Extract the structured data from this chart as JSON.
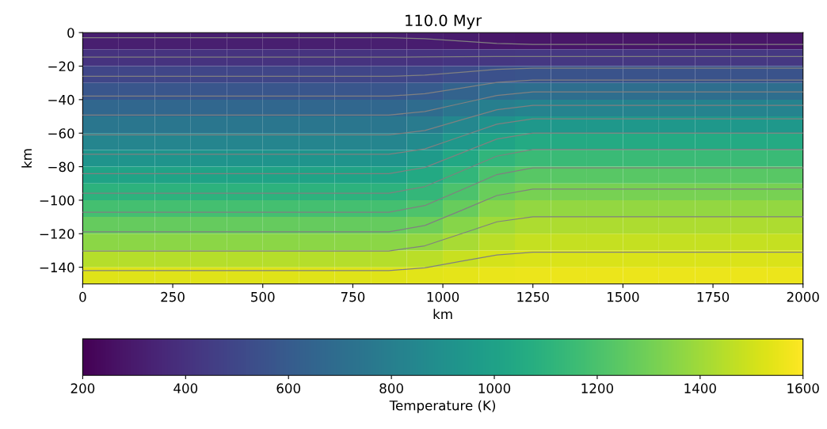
{
  "chart_data": {
    "type": "heatmap",
    "title": "110.0 Myr",
    "xlabel": "km",
    "ylabel": "km",
    "clabel": "Temperature (K)",
    "x": [
      50,
      150,
      250,
      350,
      450,
      550,
      650,
      750,
      850,
      950,
      1050,
      1150,
      1250,
      1350,
      1450,
      1550,
      1650,
      1750,
      1850,
      1950
    ],
    "y": [
      -5,
      -15,
      -25,
      -35,
      -45,
      -55,
      -65,
      -75,
      -85,
      -95,
      -105,
      -115,
      -125,
      -135,
      -145
    ],
    "cells": [
      [
        317,
        317,
        317,
        317,
        317,
        317,
        317,
        317,
        317,
        311,
        299,
        286,
        280,
        280,
        280,
        280,
        280,
        280,
        280,
        280
      ],
      [
        404,
        404,
        404,
        404,
        404,
        404,
        404,
        404,
        404,
        407,
        415,
        422,
        425,
        425,
        425,
        425,
        425,
        425,
        425,
        425
      ],
      [
        491,
        491,
        491,
        491,
        491,
        491,
        491,
        491,
        491,
        501,
        524,
        547,
        557,
        557,
        557,
        557,
        557,
        557,
        557,
        557
      ],
      [
        577,
        577,
        577,
        577,
        577,
        577,
        577,
        577,
        577,
        595,
        639,
        682,
        700,
        700,
        700,
        700,
        700,
        700,
        700,
        700
      ],
      [
        664,
        664,
        664,
        664,
        664,
        664,
        664,
        664,
        664,
        688,
        745,
        801,
        825,
        825,
        825,
        825,
        825,
        825,
        825,
        825
      ],
      [
        750,
        750,
        750,
        750,
        750,
        750,
        750,
        750,
        750,
        779,
        847,
        915,
        944,
        944,
        944,
        944,
        944,
        944,
        944,
        944
      ],
      [
        837,
        837,
        837,
        837,
        837,
        837,
        837,
        837,
        837,
        869,
        944,
        1018,
        1050,
        1050,
        1050,
        1050,
        1050,
        1050,
        1050,
        1050
      ],
      [
        923,
        923,
        923,
        923,
        923,
        923,
        923,
        923,
        923,
        957,
        1037,
        1116,
        1150,
        1150,
        1150,
        1150,
        1150,
        1150,
        1150,
        1150
      ],
      [
        1010,
        1010,
        1010,
        1010,
        1010,
        1010,
        1010,
        1010,
        1010,
        1044,
        1124,
        1204,
        1238,
        1238,
        1238,
        1238,
        1238,
        1238,
        1238,
        1238
      ],
      [
        1097,
        1097,
        1097,
        1097,
        1097,
        1097,
        1097,
        1097,
        1097,
        1129,
        1205,
        1280,
        1312,
        1312,
        1312,
        1312,
        1312,
        1312,
        1312,
        1312
      ],
      [
        1183,
        1183,
        1183,
        1183,
        1183,
        1183,
        1183,
        1183,
        1183,
        1211,
        1277,
        1343,
        1371,
        1371,
        1371,
        1371,
        1371,
        1371,
        1371,
        1371
      ],
      [
        1270,
        1270,
        1270,
        1270,
        1270,
        1270,
        1270,
        1270,
        1270,
        1293,
        1348,
        1402,
        1425,
        1425,
        1425,
        1425,
        1425,
        1425,
        1425,
        1425
      ],
      [
        1356,
        1356,
        1356,
        1356,
        1356,
        1356,
        1356,
        1356,
        1356,
        1374,
        1416,
        1457,
        1475,
        1475,
        1475,
        1475,
        1475,
        1475,
        1475,
        1475
      ],
      [
        1443,
        1443,
        1443,
        1443,
        1443,
        1443,
        1443,
        1443,
        1443,
        1455,
        1482,
        1508,
        1520,
        1520,
        1520,
        1520,
        1520,
        1520,
        1520,
        1520
      ],
      [
        1530,
        1530,
        1530,
        1530,
        1530,
        1530,
        1530,
        1530,
        1530,
        1535,
        1545,
        1555,
        1560,
        1560,
        1560,
        1560,
        1560,
        1560,
        1560,
        1560
      ]
    ],
    "clim": [
      200,
      1600
    ],
    "cticks": [
      200,
      400,
      600,
      800,
      1000,
      1200,
      1400,
      1600
    ],
    "xlim": [
      0,
      2000
    ],
    "xticks": [
      0,
      250,
      500,
      750,
      1000,
      1250,
      1500,
      1750,
      2000
    ],
    "ylim": [
      -150,
      0
    ],
    "yticks": [
      -140,
      -120,
      -100,
      -80,
      -60,
      -40,
      -20,
      0
    ],
    "series": [
      {
        "type": "line",
        "color": "#808080",
        "x": [
          0,
          850,
          950,
          1050,
          1150,
          1250,
          2000
        ],
        "values": [
          -3,
          -3,
          -3.6,
          -5.1,
          -6.5,
          -7.1,
          -7.1
        ]
      },
      {
        "type": "line",
        "color": "#808080",
        "x": [
          0,
          850,
          950,
          1050,
          1150,
          1250,
          2000
        ],
        "values": [
          -14.6,
          -14.6,
          -14.5,
          -14.4,
          -14.3,
          -14.2,
          -14.2
        ]
      },
      {
        "type": "line",
        "color": "#808080",
        "x": [
          0,
          850,
          950,
          1050,
          1150,
          1250,
          2000
        ],
        "values": [
          -26.1,
          -26.1,
          -25.4,
          -23.7,
          -21.9,
          -21.2,
          -21.2
        ]
      },
      {
        "type": "line",
        "color": "#808080",
        "x": [
          0,
          850,
          950,
          1050,
          1150,
          1250,
          2000
        ],
        "values": [
          -37.9,
          -37.9,
          -36.5,
          -33.1,
          -29.7,
          -28.3,
          -28.3
        ]
      },
      {
        "type": "line",
        "color": "#808080",
        "x": [
          0,
          850,
          950,
          1050,
          1150,
          1250,
          2000
        ],
        "values": [
          -49.2,
          -49.2,
          -47.1,
          -42.3,
          -37.5,
          -35.4,
          -35.4
        ]
      },
      {
        "type": "line",
        "color": "#808080",
        "x": [
          0,
          850,
          950,
          1050,
          1150,
          1250,
          2000
        ],
        "values": [
          -61,
          -61,
          -58.4,
          -52.2,
          -46,
          -43.4,
          -43.4
        ]
      },
      {
        "type": "line",
        "color": "#808080",
        "x": [
          0,
          850,
          950,
          1050,
          1150,
          1250,
          2000
        ],
        "values": [
          -72.6,
          -72.6,
          -69.4,
          -62,
          -54.6,
          -51.4,
          -51.4
        ]
      },
      {
        "type": "line",
        "color": "#808080",
        "x": [
          0,
          850,
          950,
          1050,
          1150,
          1250,
          2000
        ],
        "values": [
          -84.1,
          -84.1,
          -80.5,
          -72,
          -63.5,
          -59.9,
          -59.9
        ]
      },
      {
        "type": "line",
        "color": "#808080",
        "x": [
          0,
          850,
          950,
          1050,
          1150,
          1250,
          2000
        ],
        "values": [
          -95.8,
          -95.8,
          -91.9,
          -82.8,
          -73.7,
          -69.8,
          -69.8
        ]
      },
      {
        "type": "line",
        "color": "#808080",
        "x": [
          0,
          850,
          950,
          1050,
          1150,
          1250,
          2000
        ],
        "values": [
          -107.2,
          -107.2,
          -103.2,
          -94,
          -84.7,
          -80.7,
          -80.7
        ]
      },
      {
        "type": "line",
        "color": "#808080",
        "x": [
          0,
          850,
          950,
          1050,
          1150,
          1250,
          2000
        ],
        "values": [
          -118.9,
          -118.9,
          -115.1,
          -106.2,
          -97.2,
          -93.4,
          -93.4
        ]
      },
      {
        "type": "line",
        "color": "#808080",
        "x": [
          0,
          850,
          950,
          1050,
          1150,
          1250,
          2000
        ],
        "values": [
          -130.3,
          -130.3,
          -127.2,
          -120.1,
          -112.9,
          -109.9,
          -109.9
        ]
      },
      {
        "type": "line",
        "color": "#808080",
        "x": [
          0,
          850,
          950,
          1050,
          1150,
          1250,
          2000
        ],
        "values": [
          -142,
          -142,
          -140.4,
          -136.5,
          -132.7,
          -131,
          -131
        ]
      }
    ]
  }
}
